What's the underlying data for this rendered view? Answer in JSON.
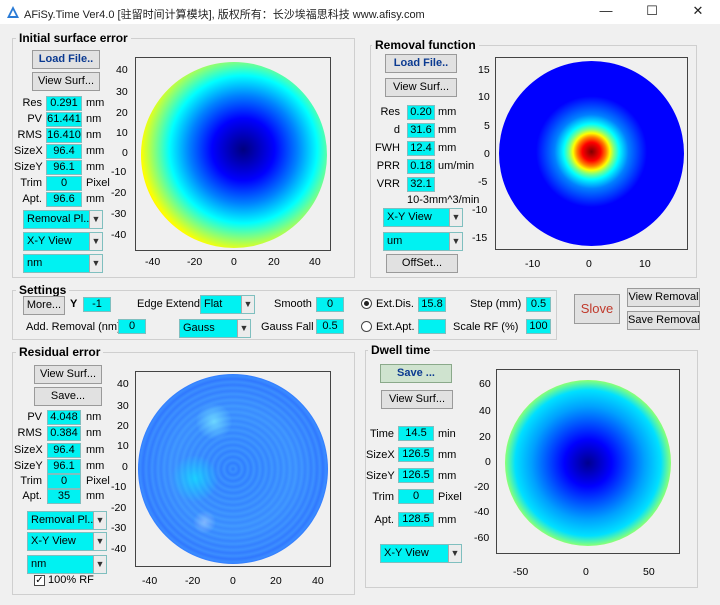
{
  "window": {
    "title": "AFiSy.Time Ver4.0 [驻留时间计算模块], 版权所有：长沙埃福思科技 www.afisy.com",
    "minimize": "—",
    "maximize": "☐",
    "close": "✕"
  },
  "initial": {
    "title": "Initial surface error",
    "load_btn": "Load File..",
    "view_btn": "View Surf...",
    "rows": [
      {
        "label": "Res",
        "value": "0.291",
        "unit": "mm"
      },
      {
        "label": "PV",
        "value": "61.441",
        "unit": "nm"
      },
      {
        "label": "RMS",
        "value": "16.410",
        "unit": "nm"
      },
      {
        "label": "SizeX",
        "value": "96.4",
        "unit": "mm"
      },
      {
        "label": "SizeY",
        "value": "96.1",
        "unit": "mm"
      },
      {
        "label": "Trim",
        "value": "0",
        "unit": "Pixel"
      },
      {
        "label": "Apt.",
        "value": "96.6",
        "unit": "mm"
      }
    ],
    "dd1": "Removal Pl...",
    "dd2": "X-Y View",
    "dd3": "nm",
    "yticks": [
      "40",
      "30",
      "20",
      "10",
      "0",
      "-10",
      "-20",
      "-30",
      "-40"
    ],
    "xticks": [
      "-40",
      "-20",
      "0",
      "20",
      "40"
    ]
  },
  "removal": {
    "title": "Removal function",
    "load_btn": "Load File..",
    "view_btn": "View Surf...",
    "rows": [
      {
        "label": "Res",
        "value": "0.20",
        "unit": "mm"
      },
      {
        "label": "d",
        "value": "31.6",
        "unit": "mm"
      },
      {
        "label": "FWH",
        "value": "12.4",
        "unit": "mm"
      },
      {
        "label": "PRR",
        "value": "0.18",
        "unit": "um/min"
      },
      {
        "label": "VRR",
        "value": "32.1",
        "unit": ""
      }
    ],
    "vrr_unit": "10-3mm^3/min",
    "dd1": "X-Y View",
    "dd2": "um",
    "offset_btn": "OffSet...",
    "yticks": [
      "15",
      "10",
      "5",
      "0",
      "-5",
      "-10",
      "-15"
    ],
    "xticks": [
      "-10",
      "0",
      "10"
    ]
  },
  "settings": {
    "title": "Settings",
    "more_btn": "More...",
    "y_label": "Y",
    "y_value": "-1",
    "edge_label": "Edge Extend",
    "edge_value": "Flat",
    "smooth_label": "Smooth",
    "smooth_value": "0",
    "ext_dis_label": "Ext.Dis.",
    "ext_dis_value": "15.8",
    "step_label": "Step (mm)",
    "step_value": "0.5",
    "add_removal_label": "Add. Removal (nm)",
    "add_removal_value": "0",
    "gauss_value": "Gauss",
    "gauss_fall_label": "Gauss Fall",
    "gauss_fall_value": "0.5",
    "ext_apt_label": "Ext.Apt.",
    "ext_apt_value": "",
    "scale_label": "Scale RF (%)",
    "scale_value": "100",
    "slove_btn": "Slove",
    "view_removal_btn": "View Removal",
    "save_removal_btn": "Save Removal"
  },
  "residual": {
    "title": "Residual error",
    "view_btn": "View Surf...",
    "save_btn": "Save...",
    "rows": [
      {
        "label": "PV",
        "value": "4.048",
        "unit": "nm"
      },
      {
        "label": "RMS",
        "value": "0.384",
        "unit": "nm"
      },
      {
        "label": "SizeX",
        "value": "96.4",
        "unit": "mm"
      },
      {
        "label": "SizeY",
        "value": "96.1",
        "unit": "mm"
      },
      {
        "label": "Trim",
        "value": "0",
        "unit": "Pixel"
      },
      {
        "label": "Apt.",
        "value": "35",
        "unit": "mm"
      }
    ],
    "dd1": "Removal Pl...",
    "dd2": "X-Y View",
    "dd3": "nm",
    "check_label": "100% RF",
    "check_mark": "✓",
    "yticks": [
      "40",
      "30",
      "20",
      "10",
      "0",
      "-10",
      "-20",
      "-30",
      "-40"
    ],
    "xticks": [
      "-40",
      "-20",
      "0",
      "20",
      "40"
    ]
  },
  "dwell": {
    "title": "Dwell time",
    "save_btn": "Save ...",
    "view_btn": "View Surf...",
    "rows": [
      {
        "label": "Time",
        "value": "14.5",
        "unit": "min"
      },
      {
        "label": "SizeX",
        "value": "126.5",
        "unit": "mm"
      },
      {
        "label": "SizeY",
        "value": "126.5",
        "unit": "mm"
      },
      {
        "label": "Trim",
        "value": "0",
        "unit": "Pixel"
      },
      {
        "label": "Apt.",
        "value": "128.5",
        "unit": "mm"
      }
    ],
    "dd1": "X-Y View",
    "yticks": [
      "60",
      "40",
      "20",
      "0",
      "-20",
      "-40",
      "-60"
    ],
    "xticks": [
      "-50",
      "0",
      "50"
    ]
  },
  "colors": {
    "field": "#00f2f2",
    "accent": "#0b3a91",
    "slove": "#c0392b"
  }
}
